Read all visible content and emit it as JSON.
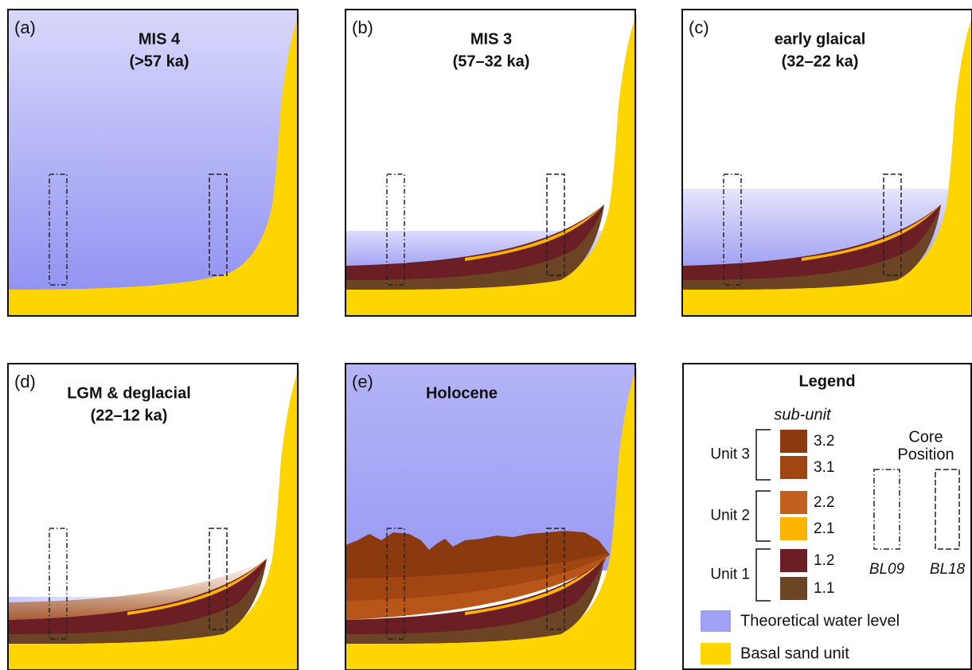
{
  "panels": [
    {
      "label": "(a)",
      "title": [
        "MIS 4",
        "(>57 ka)"
      ]
    },
    {
      "label": "(b)",
      "title": [
        "MIS 3",
        "(57–32 ka)"
      ]
    },
    {
      "label": "(c)",
      "title": [
        "early glaical",
        "(32–22 ka)"
      ]
    },
    {
      "label": "(d)",
      "title": [
        "LGM & deglacial",
        "(22–12 ka)"
      ]
    },
    {
      "label": "(e)",
      "title": [
        "Holocene"
      ]
    }
  ],
  "legend": {
    "title": "Legend",
    "subunit_heading": "sub-unit",
    "units": [
      {
        "name": "Unit 3",
        "subunits": [
          "3.2",
          "3.1"
        ]
      },
      {
        "name": "Unit 2",
        "subunits": [
          "2.2",
          "2.1"
        ]
      },
      {
        "name": "Unit 1",
        "subunits": [
          "1.2",
          "1.1"
        ]
      }
    ],
    "core_heading": [
      "Core",
      "Position"
    ],
    "cores": [
      "BL09",
      "BL18"
    ],
    "water": "Theoretical water level",
    "sand": "Basal sand unit"
  }
}
